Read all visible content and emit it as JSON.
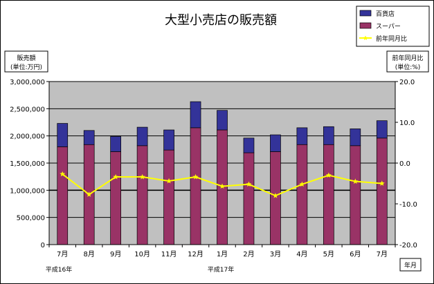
{
  "chart_data": {
    "type": "bar",
    "stacked": true,
    "title": "大型小売店の販売額",
    "categories": [
      "7月",
      "8月",
      "9月",
      "10月",
      "11月",
      "12月",
      "1月",
      "2月",
      "3月",
      "4月",
      "5月",
      "6月",
      "7月"
    ],
    "year_labels": [
      "平成16年",
      "平成17年"
    ],
    "ylabel_left": [
      "販売額",
      "(単位:万円)"
    ],
    "ylabel_right": [
      "前年同月比",
      "(単位:%)"
    ],
    "xlabel": "年月",
    "ylim_left": [
      0,
      3000000
    ],
    "yticks_left": [
      "0",
      "500,000",
      "1,000,000",
      "1,500,000",
      "2,000,000",
      "2,500,000",
      "3,000,000"
    ],
    "ylim_right": [
      -20,
      20
    ],
    "yticks_right": [
      "-20.0",
      "-10.0",
      "0.0",
      "10.0",
      "20.0"
    ],
    "series": [
      {
        "name": "スーパー",
        "type": "bar",
        "axis": "left",
        "color": "#993366",
        "values": [
          1800000,
          1840000,
          1710000,
          1820000,
          1740000,
          2150000,
          2110000,
          1690000,
          1710000,
          1840000,
          1840000,
          1820000,
          1960000
        ]
      },
      {
        "name": "百貨店",
        "type": "bar",
        "axis": "left",
        "color": "#333399",
        "values": [
          430000,
          260000,
          280000,
          340000,
          370000,
          480000,
          360000,
          270000,
          310000,
          310000,
          330000,
          310000,
          320000
        ]
      },
      {
        "name": "前年同月比",
        "type": "line",
        "axis": "right",
        "color": "#ffff00",
        "values": [
          -2.7,
          -7.7,
          -3.4,
          -3.4,
          -4.4,
          -3.4,
          -5.7,
          -5.2,
          -8.0,
          -5.2,
          -3.0,
          -4.5,
          -5.0
        ]
      }
    ],
    "legend": [
      "百貨店",
      "スーパー",
      "前年同月比"
    ],
    "legend_position": "top-right",
    "grid": true
  }
}
